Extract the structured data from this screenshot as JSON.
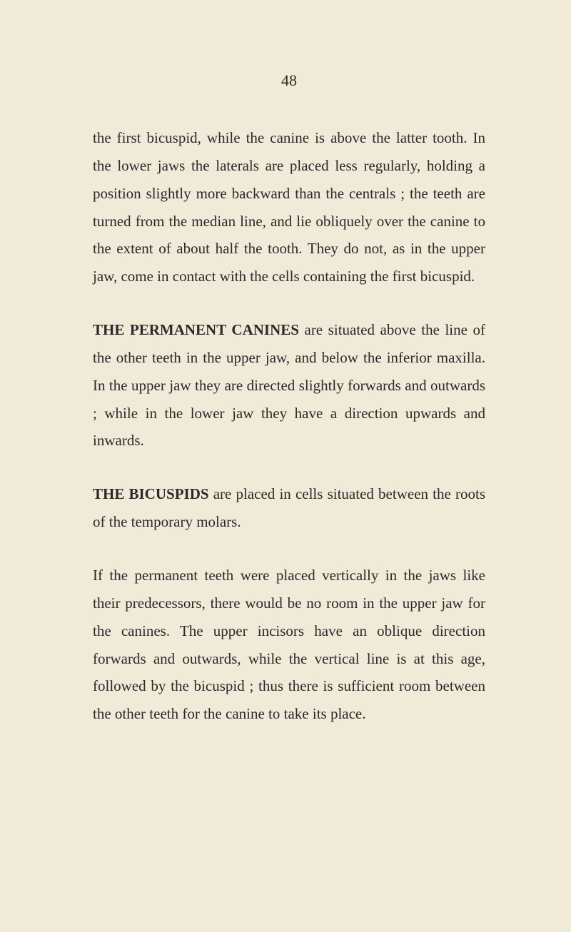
{
  "page_number": "48",
  "paragraphs": {
    "p1": "the first bicuspid, while the canine is above the latter tooth. In the lower jaws the laterals are placed less regularly, holding a position slightly more backward than the centrals ; the teeth are turned from the median line, and lie obliquely over the canine to the extent of about half the tooth. They do not, as in the upper jaw, come in contact with the cells containing the first bicuspid.",
    "p2_heading": "THE PERMANENT CANINES",
    "p2_text": " are situated above the line of the other teeth in the upper jaw, and below the inferior maxilla. In the upper jaw they are directed slightly forwards and outwards ; while in the lower jaw they have a direction upwards and inwards.",
    "p3_heading": "THE BICUSPIDS",
    "p3_text": " are placed in cells situated between the roots of the temporary molars.",
    "p4": "If the permanent teeth were placed vertically in the jaws like their predecessors, there would be no room in the upper jaw for the canines. The upper incisors have an oblique direction forwards and outwards, while the vertical line is at this age, followed by the bicuspid ; thus there is sufficient room between the other teeth for the canine to take its place."
  }
}
